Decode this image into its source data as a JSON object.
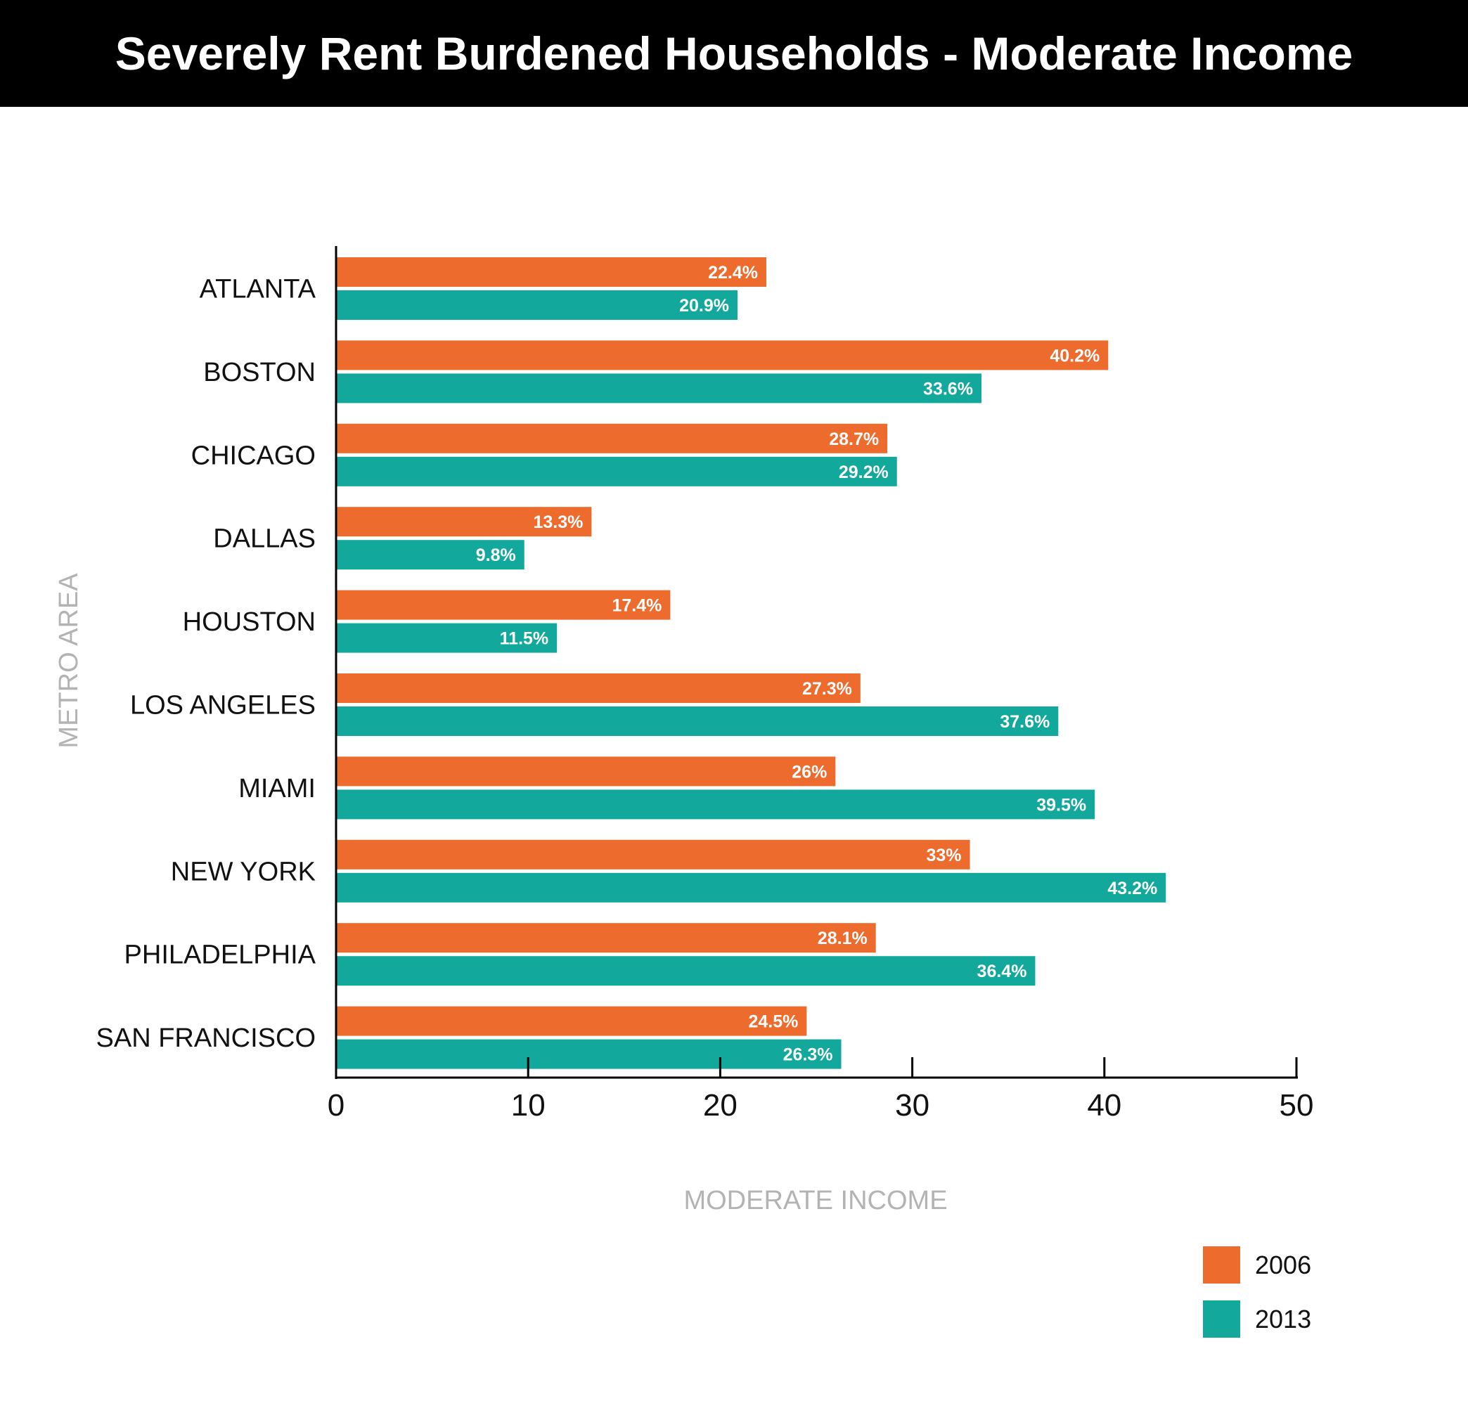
{
  "colors": {
    "series_2006": "#EC6B2D",
    "series_2013": "#12A89B",
    "axis": "#000000",
    "axis_title": "#B3B3B3"
  },
  "chart_data": {
    "type": "bar",
    "orientation": "horizontal",
    "title": "Severely Rent Burdened Households - Moderate Income",
    "xlabel": "MODERATE INCOME",
    "ylabel": "METRO AREA",
    "xlim": [
      0,
      50
    ],
    "xticks": [
      "0",
      "10",
      "20",
      "30",
      "40",
      "50"
    ],
    "categories": [
      "ATLANTA",
      "BOSTON",
      "CHICAGO",
      "DALLAS",
      "HOUSTON",
      "LOS ANGELES",
      "MIAMI",
      "NEW YORK",
      "PHILADELPHIA",
      "SAN FRANCISCO"
    ],
    "series": [
      {
        "name": "2006",
        "values": [
          22.4,
          40.2,
          28.7,
          13.3,
          17.4,
          27.3,
          26,
          33,
          28.1,
          24.5
        ],
        "labels": [
          "22.4%",
          "40.2%",
          "28.7%",
          "13.3%",
          "17.4%",
          "27.3%",
          "26%",
          "33%",
          "28.1%",
          "24.5%"
        ]
      },
      {
        "name": "2013",
        "values": [
          20.9,
          33.6,
          29.2,
          9.8,
          11.5,
          37.6,
          39.5,
          43.2,
          36.4,
          26.3
        ],
        "labels": [
          "20.9%",
          "33.6%",
          "29.2%",
          "9.8%",
          "11.5%",
          "37.6%",
          "39.5%",
          "43.2%",
          "36.4%",
          "26.3%"
        ]
      }
    ],
    "legend_position": "bottom-right",
    "grid": false
  }
}
